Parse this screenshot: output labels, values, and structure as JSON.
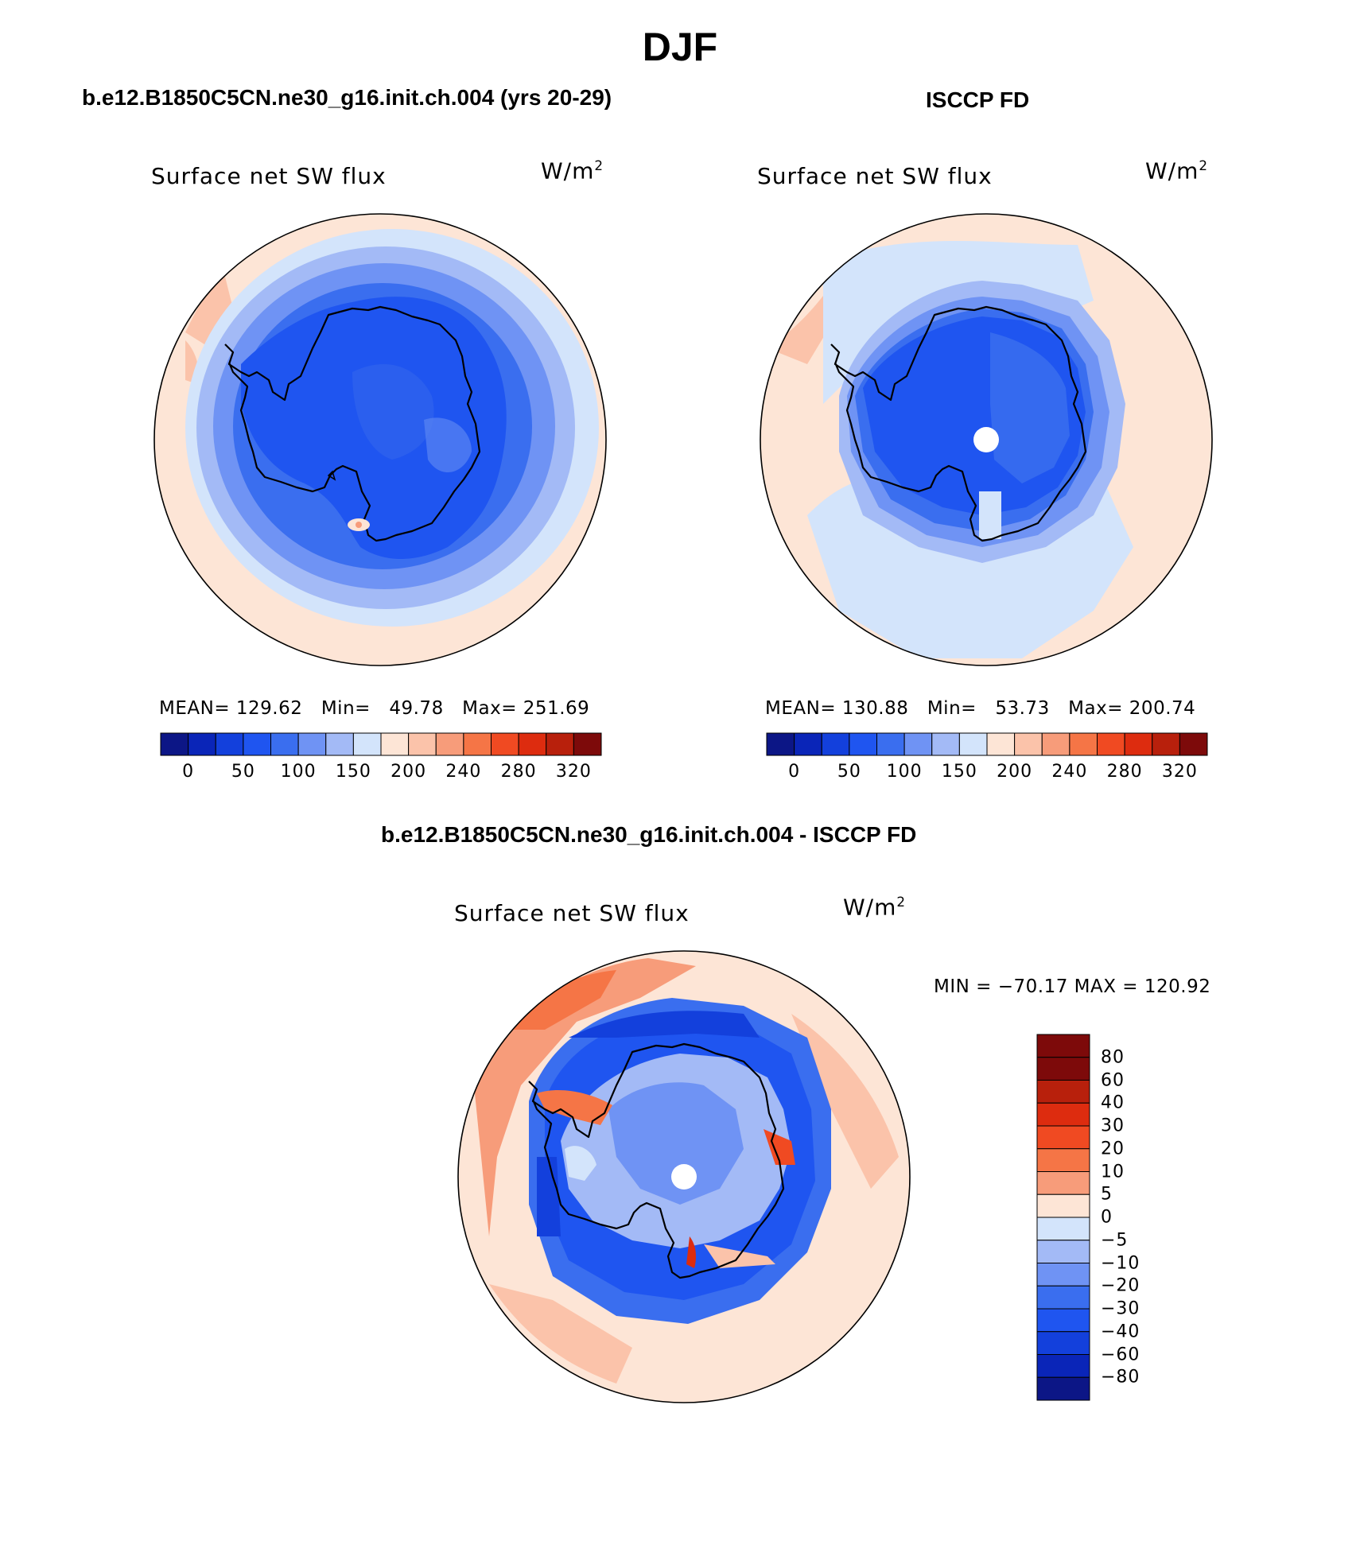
{
  "main_title": "DJF",
  "panels": [
    {
      "heading": "b.e12.B1850C5CN.ne30_g16.init.ch.004 (yrs 20-29)",
      "field": "Surface net SW flux",
      "unit_base": "W/m",
      "unit_exp": "2",
      "stats": {
        "mean_label": "MEAN=",
        "mean": "129.62",
        "min_label": "Min=",
        "min": "49.78",
        "max_label": "Max=",
        "max": "251.69"
      }
    },
    {
      "heading": "ISCCP FD",
      "field": "Surface net SW flux",
      "unit_base": "W/m",
      "unit_exp": "2",
      "stats": {
        "mean_label": "MEAN=",
        "mean": "130.88",
        "min_label": "Min=",
        "min": "53.73",
        "max_label": "Max=",
        "max": "200.74"
      }
    },
    {
      "heading": "b.e12.B1850C5CN.ne30_g16.init.ch.004 - ISCCP FD",
      "field": "Surface net SW flux",
      "unit_base": "W/m",
      "unit_exp": "2",
      "minmax": "MIN = −70.17  MAX = 120.92"
    }
  ],
  "abs_colorbar": {
    "colors": [
      "#0c1686",
      "#0a25b8",
      "#1340dc",
      "#1f55f0",
      "#3a6eef",
      "#6f93f4",
      "#a3baf6",
      "#d3e4fb",
      "#fde5d6",
      "#fbc3aa",
      "#f79c7a",
      "#f57546",
      "#f04a22",
      "#dd2c0f",
      "#b8200c",
      "#7d0a0a"
    ],
    "ticks": [
      "0",
      "50",
      "100",
      "150",
      "200",
      "240",
      "280",
      "320"
    ]
  },
  "diff_colorbar": {
    "colors": [
      "#7d0a0a",
      "#b8200c",
      "#dd2c0f",
      "#f04a22",
      "#f57546",
      "#f79c7a",
      "#fde5d6",
      "#d3e4fb",
      "#a3baf6",
      "#6f93f4",
      "#3a6eef",
      "#1f55f0",
      "#1340dc",
      "#0a25b8",
      "#0c1686"
    ],
    "ticks": [
      "80",
      "60",
      "40",
      "30",
      "20",
      "10",
      "5",
      "0",
      "−5",
      "−10",
      "−20",
      "−30",
      "−40",
      "−60",
      "−80"
    ]
  }
}
